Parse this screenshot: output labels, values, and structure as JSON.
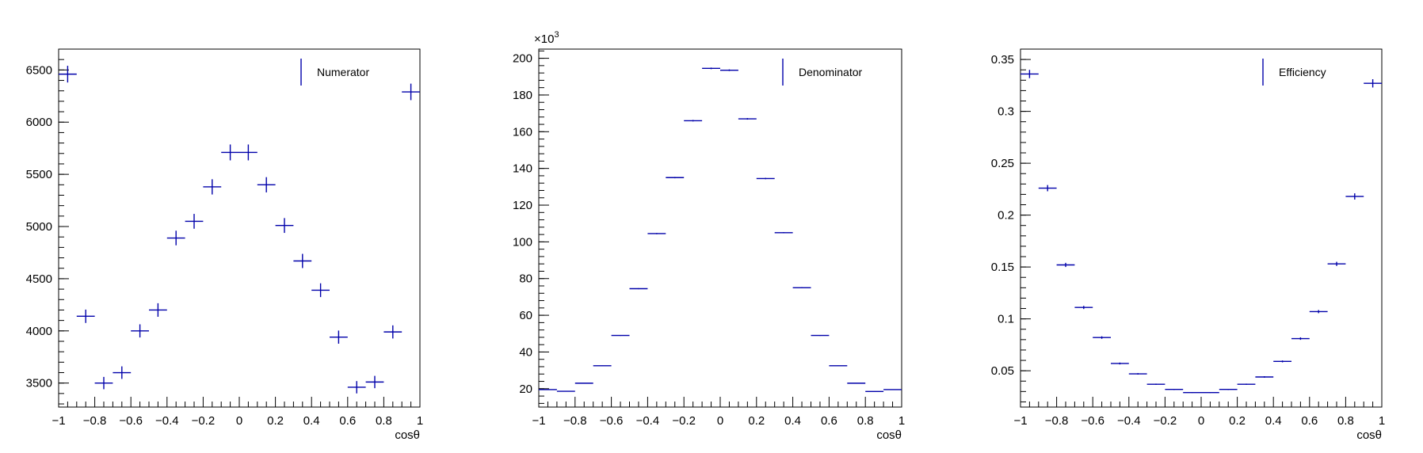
{
  "chart_data": [
    {
      "type": "scatter",
      "xlabel": "cosθ",
      "legend": "Numerator",
      "legend_position": "top-right",
      "xlim": [
        -1,
        1
      ],
      "ylim": [
        3270,
        6700
      ],
      "xticks": [
        -1,
        -0.8,
        -0.6,
        -0.4,
        -0.2,
        0,
        0.2,
        0.4,
        0.6,
        0.8,
        1
      ],
      "xtick_labels": [
        "−1",
        "−0.8",
        "−0.6",
        "−0.4",
        "−0.2",
        "0",
        "0.2",
        "0.4",
        "0.6",
        "0.8",
        "1"
      ],
      "yticks": [
        3500,
        4000,
        4500,
        5000,
        5500,
        6000,
        6500
      ],
      "ytick_labels": [
        "3500",
        "4000",
        "4500",
        "5000",
        "5500",
        "6000",
        "6500"
      ],
      "exponent_label": "",
      "x": [
        -0.95,
        -0.85,
        -0.75,
        -0.65,
        -0.55,
        -0.45,
        -0.35,
        -0.25,
        -0.15,
        -0.05,
        0.05,
        0.15,
        0.25,
        0.35,
        0.45,
        0.55,
        0.65,
        0.75,
        0.85,
        0.95
      ],
      "y": [
        6460,
        4140,
        3500,
        3600,
        4000,
        4200,
        4890,
        5050,
        5380,
        5710,
        5710,
        5400,
        5010,
        4670,
        4390,
        3940,
        3460,
        3510,
        3990,
        6290
      ],
      "yerr": [
        80,
        64,
        59,
        60,
        63,
        65,
        70,
        71,
        73,
        76,
        76,
        73,
        71,
        68,
        66,
        63,
        59,
        59,
        63,
        79
      ],
      "color": "#0000aa"
    },
    {
      "type": "scatter",
      "xlabel": "cosθ",
      "legend": "Denominator",
      "legend_position": "top-right",
      "xlim": [
        -1,
        1
      ],
      "ylim": [
        10,
        205
      ],
      "xticks": [
        -1,
        -0.8,
        -0.6,
        -0.4,
        -0.2,
        0,
        0.2,
        0.4,
        0.6,
        0.8,
        1
      ],
      "xtick_labels": [
        "−1",
        "−0.8",
        "−0.6",
        "−0.4",
        "−0.2",
        "0",
        "0.2",
        "0.4",
        "0.6",
        "0.8",
        "1"
      ],
      "yticks": [
        20,
        40,
        60,
        80,
        100,
        120,
        140,
        160,
        180,
        200
      ],
      "ytick_labels": [
        "20",
        "40",
        "60",
        "80",
        "100",
        "120",
        "140",
        "160",
        "180",
        "200"
      ],
      "exponent_label": "×10",
      "exponent_power": "3",
      "x": [
        -0.95,
        -0.85,
        -0.75,
        -0.65,
        -0.55,
        -0.45,
        -0.35,
        -0.25,
        -0.15,
        -0.05,
        0.05,
        0.15,
        0.25,
        0.35,
        0.45,
        0.55,
        0.65,
        0.75,
        0.85,
        0.95
      ],
      "y": [
        19.5,
        18.6,
        23.0,
        32.5,
        49.0,
        74.5,
        104.5,
        135.0,
        166.0,
        194.5,
        193.5,
        167.0,
        134.5,
        105.0,
        75.0,
        49.0,
        32.5,
        23.0,
        18.5,
        19.5
      ],
      "yerr": [
        0.14,
        0.14,
        0.15,
        0.18,
        0.22,
        0.27,
        0.32,
        0.37,
        0.41,
        0.44,
        0.44,
        0.41,
        0.37,
        0.32,
        0.27,
        0.22,
        0.18,
        0.15,
        0.14,
        0.14
      ],
      "color": "#0000aa"
    },
    {
      "type": "scatter",
      "xlabel": "cosθ",
      "legend": "Efficiency",
      "legend_position": "top-right",
      "xlim": [
        -1,
        1
      ],
      "ylim": [
        0.015,
        0.36
      ],
      "xticks": [
        -1,
        -0.8,
        -0.6,
        -0.4,
        -0.2,
        0,
        0.2,
        0.4,
        0.6,
        0.8,
        1
      ],
      "xtick_labels": [
        "−1",
        "−0.8",
        "−0.6",
        "−0.4",
        "−0.2",
        "0",
        "0.2",
        "0.4",
        "0.6",
        "0.8",
        "1"
      ],
      "yticks": [
        0.05,
        0.1,
        0.15,
        0.2,
        0.25,
        0.3,
        0.35
      ],
      "ytick_labels": [
        "0.05",
        "0.1",
        "0.15",
        "0.2",
        "0.25",
        "0.3",
        "0.35"
      ],
      "exponent_label": "",
      "x": [
        -0.95,
        -0.85,
        -0.75,
        -0.65,
        -0.55,
        -0.45,
        -0.35,
        -0.25,
        -0.15,
        -0.05,
        0.05,
        0.15,
        0.25,
        0.35,
        0.45,
        0.55,
        0.65,
        0.75,
        0.85,
        0.95
      ],
      "y": [
        0.336,
        0.226,
        0.152,
        0.111,
        0.082,
        0.057,
        0.047,
        0.037,
        0.032,
        0.029,
        0.029,
        0.032,
        0.037,
        0.044,
        0.059,
        0.081,
        0.107,
        0.153,
        0.218,
        0.327
      ],
      "yerr": [
        0.004,
        0.003,
        0.002,
        0.0015,
        0.0012,
        0.0009,
        0.0007,
        0.0006,
        0.0005,
        0.0004,
        0.0004,
        0.0005,
        0.0006,
        0.0007,
        0.0009,
        0.0012,
        0.0015,
        0.002,
        0.003,
        0.004
      ],
      "color": "#0000aa"
    }
  ]
}
